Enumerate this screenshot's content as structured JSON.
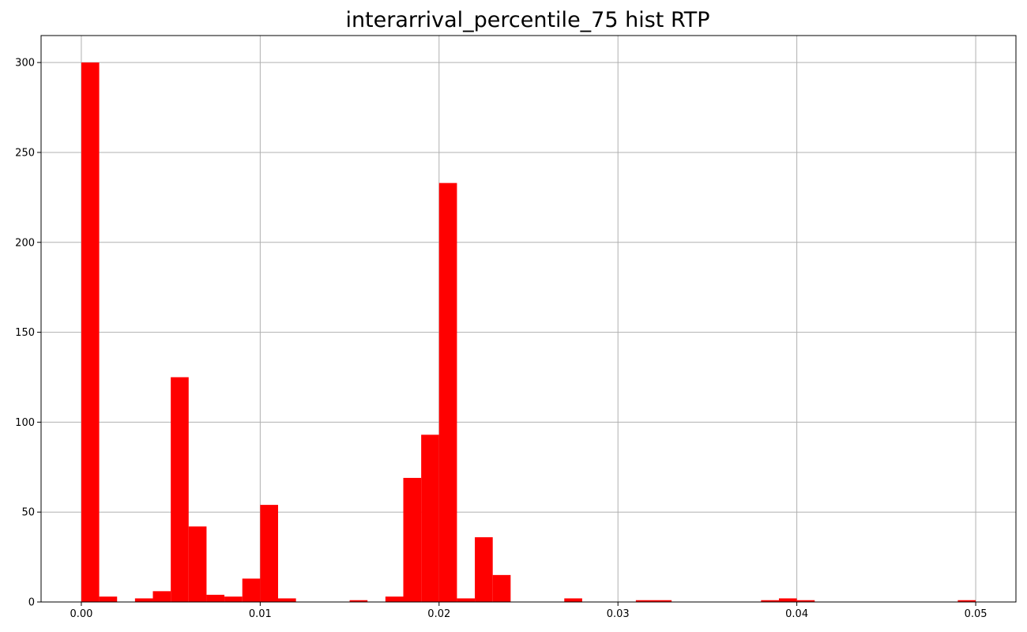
{
  "chart_data": {
    "type": "bar",
    "title": "interarrival_percentile_75 hist RTP",
    "xlabel": "",
    "ylabel": "",
    "grid": true,
    "bar_color": "#ff0000",
    "xlim": [
      -0.00225,
      0.05225
    ],
    "ylim": [
      0,
      315
    ],
    "xticks": [
      0.0,
      0.01,
      0.02,
      0.03,
      0.04,
      0.05
    ],
    "xtick_labels": [
      "0.00",
      "0.01",
      "0.02",
      "0.03",
      "0.04",
      "0.05"
    ],
    "yticks": [
      0,
      50,
      100,
      150,
      200,
      250,
      300
    ],
    "ytick_labels": [
      "0",
      "50",
      "100",
      "150",
      "200",
      "250",
      "300"
    ],
    "bin_start": 0.0,
    "bin_width": 0.001,
    "values": [
      300,
      3,
      0,
      2,
      6,
      125,
      42,
      4,
      3,
      13,
      54,
      2,
      0,
      0,
      0,
      1,
      0,
      3,
      69,
      93,
      233,
      2,
      36,
      15,
      0,
      0,
      0,
      2,
      0,
      0,
      0,
      1,
      1,
      0,
      0,
      0,
      0,
      0,
      1,
      2,
      1,
      0,
      0,
      0,
      0,
      0,
      0,
      0,
      0,
      1
    ]
  }
}
